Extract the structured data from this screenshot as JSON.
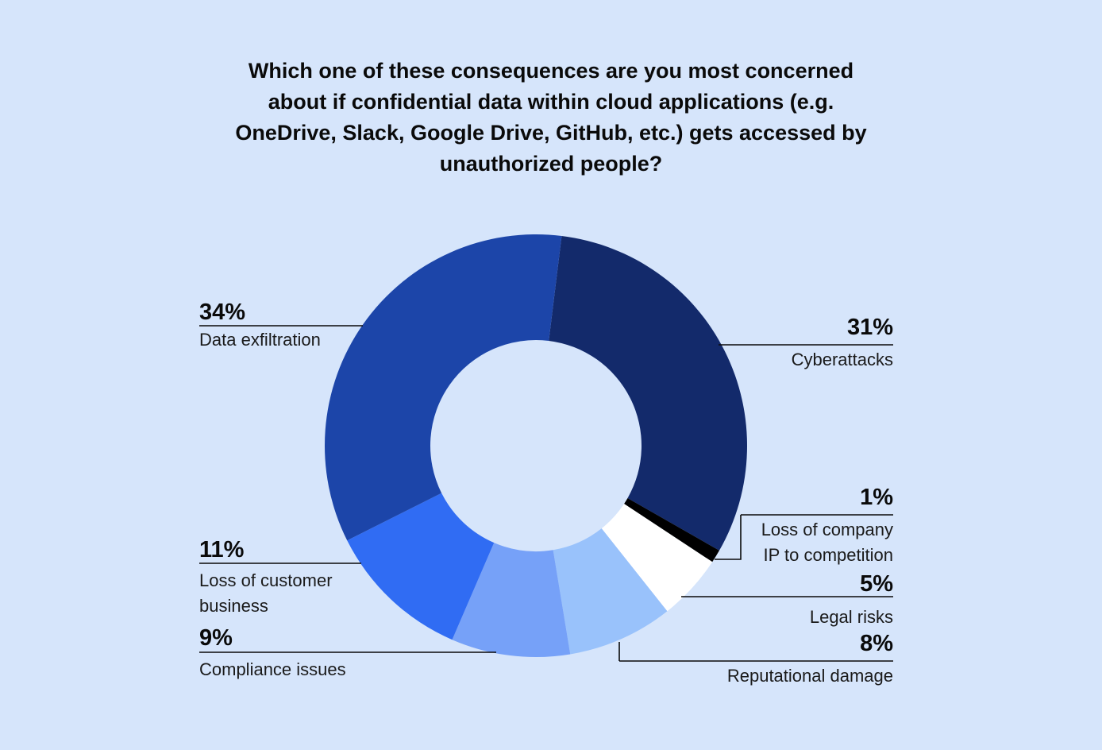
{
  "chart_data": {
    "type": "pie",
    "donut": true,
    "title": "Which one of these consequences are you most concerned about if confidential data within cloud applications (e.g. OneDrive, Slack, Google Drive, GitHub, etc.) gets accessed by unauthorized people?",
    "start_angle_deg": 7,
    "direction": "clockwise",
    "slices": [
      {
        "label": "Cyberattacks",
        "value": 31,
        "value_label": "31%",
        "color": "#132a6b"
      },
      {
        "label": "Loss of company IP to competition",
        "label_lines": [
          "Loss of company",
          "IP to competition"
        ],
        "value": 1,
        "value_label": "1%",
        "color": "#000000"
      },
      {
        "label": "Legal risks",
        "value": 5,
        "value_label": "5%",
        "color": "#ffffff"
      },
      {
        "label": "Reputational damage",
        "value": 8,
        "value_label": "8%",
        "color": "#99c2fb"
      },
      {
        "label": "Compliance issues",
        "value": 9,
        "value_label": "9%",
        "color": "#76a1f8"
      },
      {
        "label": "Loss of customer business",
        "label_lines": [
          "Loss of customer",
          "business"
        ],
        "value": 11,
        "value_label": "11%",
        "color": "#306cf3"
      },
      {
        "label": "Data exfiltration",
        "value": 34,
        "value_label": "34%",
        "color": "#1c45a9"
      }
    ],
    "legend": "callout labels"
  }
}
